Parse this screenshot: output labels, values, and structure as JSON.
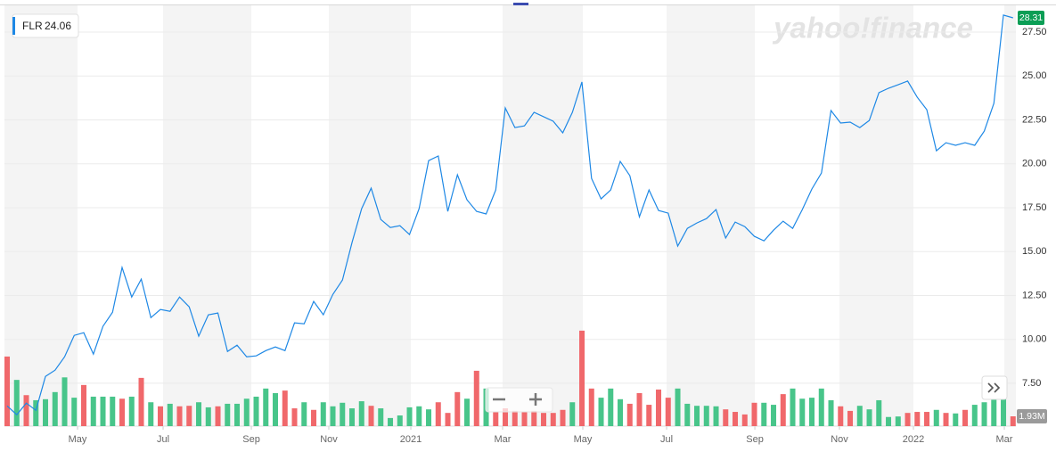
{
  "chart_data": {
    "type": "line",
    "watermark": "yahoo!finance",
    "symbol": "FLR",
    "hover_price": 24.06,
    "series": [
      {
        "name": "FLR",
        "color": "#1e88e5",
        "values": [
          6.21,
          5.71,
          6.37,
          5.96,
          7.89,
          8.25,
          9.01,
          10.23,
          10.38,
          9.16,
          10.74,
          11.55,
          14.09,
          12.41,
          13.43,
          11.24,
          11.7,
          11.6,
          12.41,
          11.85,
          10.18,
          11.4,
          11.5,
          9.31,
          9.67,
          9.01,
          9.06,
          9.36,
          9.57,
          9.36,
          10.94,
          10.89,
          12.16,
          11.4,
          12.56,
          13.38,
          15.51,
          17.44,
          18.61,
          16.83,
          16.37,
          16.47,
          15.97,
          17.44,
          20.18,
          20.44,
          17.29,
          19.37,
          17.95,
          17.29,
          17.14,
          18.51,
          23.18,
          22.06,
          22.16,
          22.93,
          22.68,
          22.42,
          21.76,
          22.93,
          24.66,
          19.17,
          18.0,
          18.51,
          20.13,
          19.32,
          16.98,
          18.51,
          17.34,
          17.19,
          15.31,
          16.32,
          16.63,
          16.88,
          17.39,
          15.77,
          16.68,
          16.42,
          15.87,
          15.61,
          16.22,
          16.73,
          16.32,
          17.39,
          18.56,
          19.47,
          23.03,
          22.32,
          22.37,
          22.06,
          22.47,
          24.05,
          24.3,
          24.5,
          24.71,
          23.79,
          23.08,
          20.74,
          21.2,
          21.05,
          21.2,
          21.05,
          21.86,
          23.44,
          28.47,
          28.31
        ]
      }
    ],
    "volume": {
      "values": [
        13.7,
        9.1,
        6.1,
        5.1,
        5.3,
        6.7,
        9.6,
        5.6,
        8.1,
        5.8,
        5.8,
        5.8,
        5.4,
        5.8,
        9.5,
        4.7,
        3.9,
        4.4,
        3.9,
        4.0,
        4.7,
        3.7,
        3.9,
        4.4,
        4.4,
        5.4,
        5.8,
        7.4,
        6.5,
        7.0,
        3.5,
        4.7,
        3.2,
        4.7,
        3.9,
        4.6,
        3.5,
        4.9,
        4.0,
        3.5,
        1.6,
        2.1,
        3.7,
        3.9,
        3.3,
        4.7,
        2.6,
        6.7,
        5.4,
        10.9,
        7.4,
        2.8,
        3.5,
        3.0,
        2.8,
        3.0,
        2.6,
        2.6,
        3.2,
        4.7,
        18.8,
        7.4,
        5.6,
        7.4,
        5.3,
        4.4,
        6.5,
        4.2,
        7.2,
        5.6,
        7.4,
        4.4,
        4.0,
        4.0,
        3.9,
        3.3,
        2.8,
        2.3,
        4.6,
        4.6,
        4.2,
        6.3,
        7.4,
        5.4,
        5.6,
        7.4,
        5.1,
        3.9,
        3.0,
        4.0,
        3.3,
        5.1,
        1.8,
        1.9,
        2.6,
        2.8,
        2.8,
        3.2,
        2.6,
        2.5,
        3.2,
        4.2,
        4.7,
        5.3,
        5.3,
        1.93
      ],
      "colors": [
        "#f0686b",
        "#48c58a",
        "#f0686b",
        "#48c58a",
        "#48c58a",
        "#48c58a",
        "#48c58a",
        "#48c58a",
        "#f0686b",
        "#48c58a",
        "#48c58a",
        "#48c58a",
        "#f0686b",
        "#48c58a",
        "#f0686b",
        "#48c58a",
        "#f0686b",
        "#48c58a",
        "#f0686b",
        "#f0686b",
        "#48c58a",
        "#48c58a",
        "#f0686b",
        "#48c58a",
        "#48c58a",
        "#48c58a",
        "#48c58a",
        "#48c58a",
        "#48c58a",
        "#f0686b",
        "#f0686b",
        "#48c58a",
        "#f0686b",
        "#48c58a",
        "#48c58a",
        "#48c58a",
        "#48c58a",
        "#48c58a",
        "#f0686b",
        "#48c58a",
        "#48c58a",
        "#48c58a",
        "#48c58a",
        "#48c58a",
        "#48c58a",
        "#f0686b",
        "#f0686b",
        "#f0686b",
        "#48c58a",
        "#f0686b",
        "#48c58a",
        "#f0686b",
        "#f0686b",
        "#f0686b",
        "#f0686b",
        "#f0686b",
        "#f0686b",
        "#f0686b",
        "#f0686b",
        "#48c58a",
        "#f0686b",
        "#f0686b",
        "#48c58a",
        "#48c58a",
        "#48c58a",
        "#f0686b",
        "#f0686b",
        "#f0686b",
        "#f0686b",
        "#f0686b",
        "#48c58a",
        "#48c58a",
        "#48c58a",
        "#48c58a",
        "#48c58a",
        "#f0686b",
        "#f0686b",
        "#f0686b",
        "#f0686b",
        "#48c58a",
        "#48c58a",
        "#f0686b",
        "#48c58a",
        "#48c58a",
        "#48c58a",
        "#48c58a",
        "#48c58a",
        "#f0686b",
        "#f0686b",
        "#48c58a",
        "#48c58a",
        "#48c58a",
        "#48c58a",
        "#48c58a",
        "#f0686b",
        "#f0686b",
        "#f0686b",
        "#48c58a",
        "#f0686b",
        "#48c58a",
        "#f0686b",
        "#48c58a",
        "#48c58a",
        "#48c58a",
        "#48c58a",
        "#f0686b"
      ],
      "value_labels": [
        null,
        null,
        null,
        null,
        null,
        null,
        null,
        null,
        null,
        null,
        null,
        null,
        null,
        null,
        null,
        null,
        null,
        null,
        null,
        null,
        null,
        null,
        null,
        null,
        null,
        null,
        null,
        null,
        null,
        null,
        null,
        null,
        null,
        null,
        null,
        null,
        null,
        null,
        null,
        null,
        null,
        null,
        null,
        null,
        null,
        null,
        null,
        null,
        null,
        null,
        null,
        null,
        null,
        null,
        null,
        null,
        null,
        null,
        null,
        null,
        null,
        null,
        null,
        null,
        null,
        null,
        null,
        null,
        null,
        null,
        null,
        null,
        null,
        null,
        null,
        null,
        null,
        null,
        null,
        null,
        null,
        null,
        null,
        null,
        null,
        null,
        null,
        null,
        null,
        null,
        null,
        null,
        null,
        null,
        null,
        null,
        null,
        null,
        null,
        null,
        null,
        null,
        null,
        null,
        null,
        "1.93M"
      ]
    },
    "xlim": [
      -0.28,
      105.3
    ],
    "xticks": [
      {
        "value": 7.35,
        "label": "May"
      },
      {
        "value": 16.28,
        "label": "Jul"
      },
      {
        "value": 25.49,
        "label": "Sep"
      },
      {
        "value": 33.58,
        "label": "Nov"
      },
      {
        "value": 42.14,
        "label": "2021"
      },
      {
        "value": 51.72,
        "label": "Mar"
      },
      {
        "value": 60.09,
        "label": "May"
      },
      {
        "value": 68.84,
        "label": "Jul"
      },
      {
        "value": 78.05,
        "label": "Sep"
      },
      {
        "value": 86.88,
        "label": "Nov"
      },
      {
        "value": 94.6,
        "label": "2022"
      },
      {
        "value": 104.09,
        "label": "Mar"
      }
    ],
    "ylim": [
      5.06,
      28.92
    ],
    "yticks": [
      {
        "value": 7.5,
        "label": "7.50"
      },
      {
        "value": 10,
        "label": "10.00"
      },
      {
        "value": 12.5,
        "label": "12.50"
      },
      {
        "value": 15,
        "label": "15.00"
      },
      {
        "value": 17.5,
        "label": "17.50"
      },
      {
        "value": 20,
        "label": "20.00"
      },
      {
        "value": 22.5,
        "label": "22.50"
      },
      {
        "value": 25,
        "label": "25.00"
      },
      {
        "value": 27.5,
        "label": "27.50"
      }
    ],
    "y2lim": [
      0,
      82.5
    ],
    "grid": true,
    "price_badge_color": "#0b9e55"
  }
}
